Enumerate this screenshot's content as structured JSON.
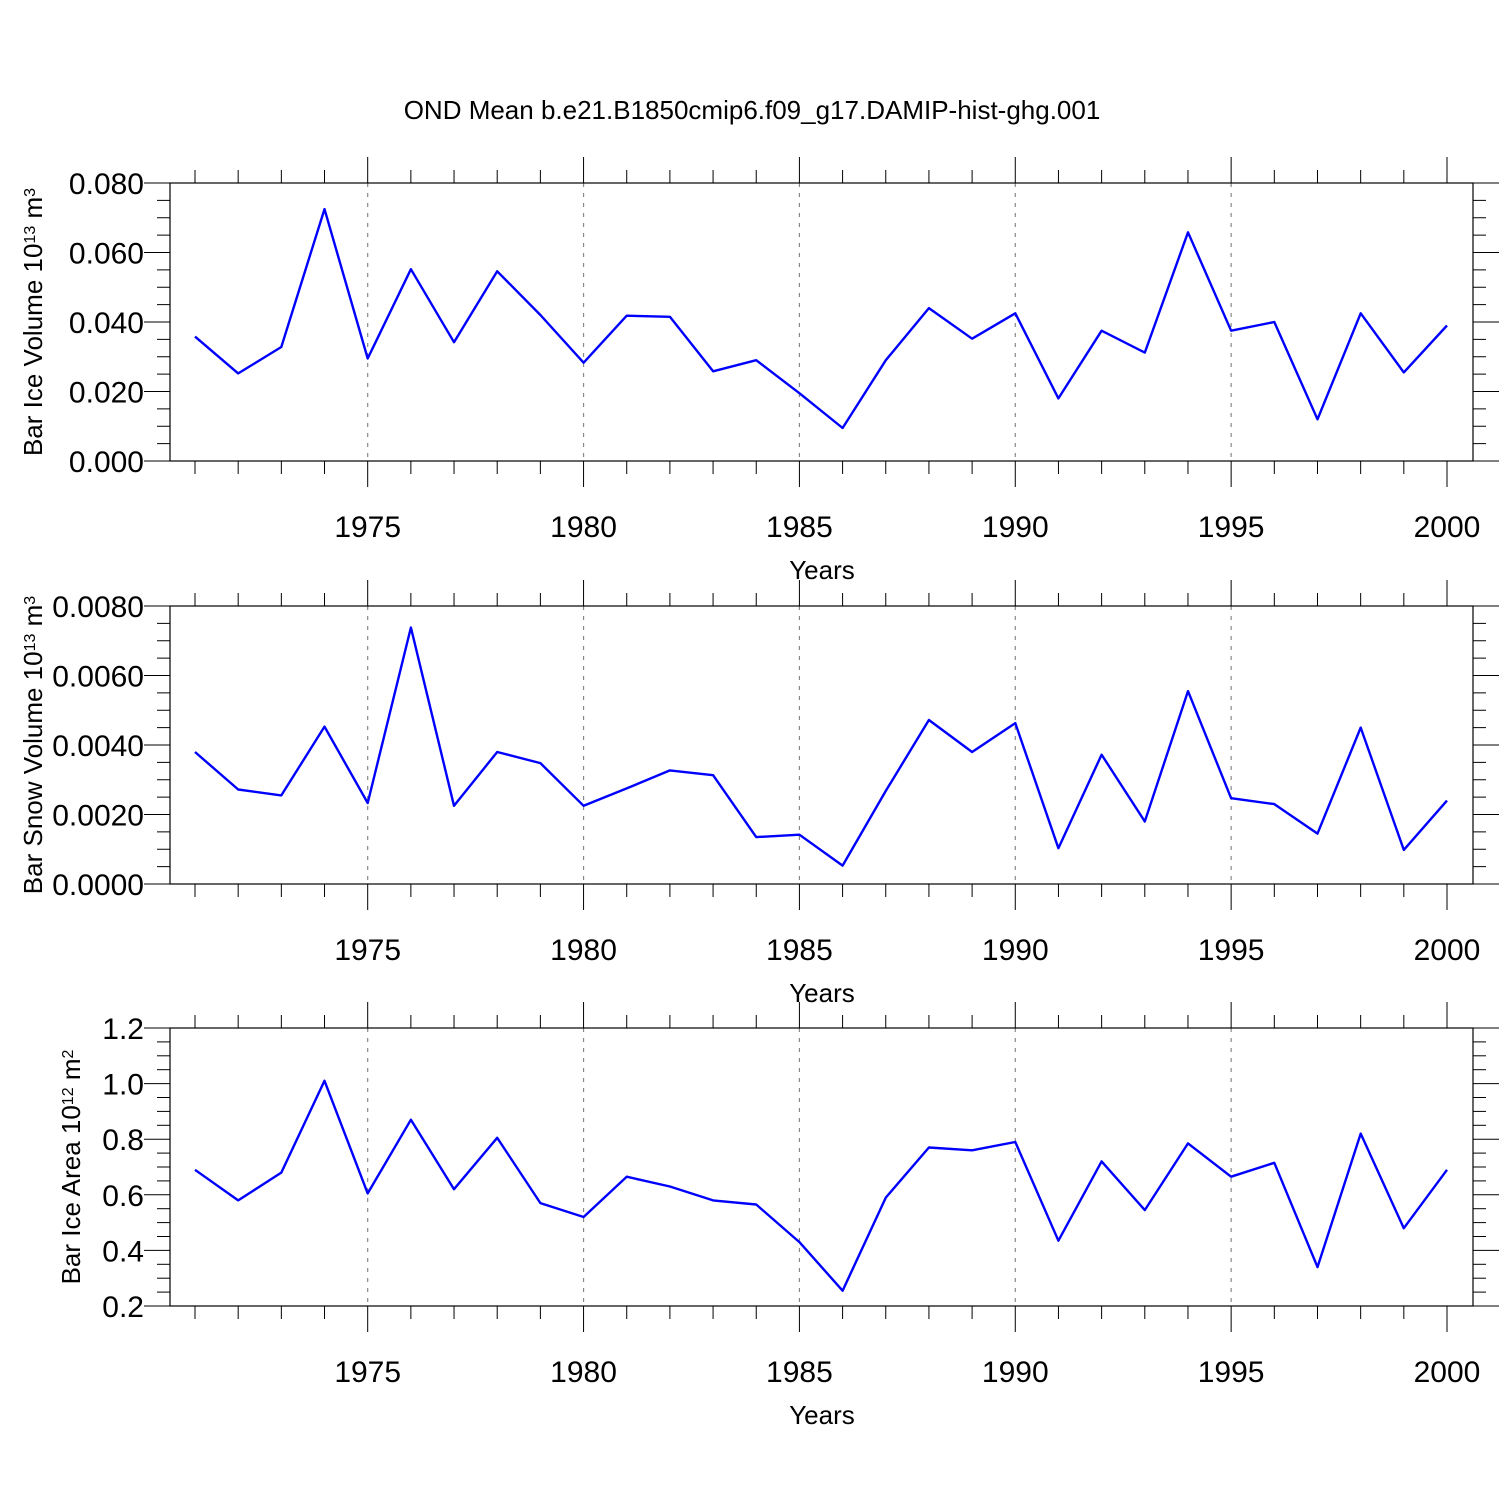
{
  "figure": {
    "title": "OND Mean b.e21.B1850cmip6.f09_g17.DAMIP-hist-ghg.001"
  },
  "chart_data": [
    {
      "type": "line",
      "xlabel": "Years",
      "ylabel": "Bar Ice Volume 10",
      "ylabel_exp": "13",
      "ylabel_unit": "m",
      "ylabel_unit_exp": "3",
      "xlim": [
        1971,
        2000
      ],
      "ylim": [
        0.0,
        0.08
      ],
      "xticks": [
        1975,
        1980,
        1985,
        1990,
        1995,
        2000
      ],
      "xtick_labels": [
        "1975",
        "1980",
        "1985",
        "1990",
        "1995",
        "2000"
      ],
      "yticks": [
        0.0,
        0.02,
        0.04,
        0.06,
        0.08
      ],
      "ytick_labels": [
        "0.000",
        "0.020",
        "0.040",
        "0.060",
        "0.080"
      ],
      "vgrid_years": [
        1975,
        1980,
        1985,
        1990,
        1995
      ],
      "series_color": "#0000ff",
      "x": [
        1971,
        1972,
        1973,
        1974,
        1975,
        1976,
        1977,
        1978,
        1979,
        1980,
        1981,
        1982,
        1983,
        1984,
        1985,
        1986,
        1987,
        1988,
        1989,
        1990,
        1991,
        1992,
        1993,
        1994,
        1995,
        1996,
        1997,
        1998,
        1999,
        2000
      ],
      "values": [
        0.0358,
        0.0252,
        0.0328,
        0.0725,
        0.0295,
        0.0552,
        0.0342,
        0.0546,
        0.042,
        0.0283,
        0.0418,
        0.0415,
        0.0258,
        0.029,
        0.0195,
        0.0095,
        0.029,
        0.044,
        0.0352,
        0.0425,
        0.018,
        0.0375,
        0.0312,
        0.0658,
        0.0375,
        0.04,
        0.012,
        0.0425,
        0.0255,
        0.039
      ]
    },
    {
      "type": "line",
      "xlabel": "Years",
      "ylabel": "Bar Snow Volume 10",
      "ylabel_exp": "13",
      "ylabel_unit": "m",
      "ylabel_unit_exp": "3",
      "xlim": [
        1971,
        2000
      ],
      "ylim": [
        0.0,
        0.008
      ],
      "xticks": [
        1975,
        1980,
        1985,
        1990,
        1995,
        2000
      ],
      "xtick_labels": [
        "1975",
        "1980",
        "1985",
        "1990",
        "1995",
        "2000"
      ],
      "yticks": [
        0.0,
        0.002,
        0.004,
        0.006,
        0.008
      ],
      "ytick_labels": [
        "0.0000",
        "0.0020",
        "0.0040",
        "0.0060",
        "0.0080"
      ],
      "vgrid_years": [
        1975,
        1980,
        1985,
        1990,
        1995
      ],
      "series_color": "#0000ff",
      "x": [
        1971,
        1972,
        1973,
        1974,
        1975,
        1976,
        1977,
        1978,
        1979,
        1980,
        1981,
        1982,
        1983,
        1984,
        1985,
        1986,
        1987,
        1988,
        1989,
        1990,
        1991,
        1992,
        1993,
        1994,
        1995,
        1996,
        1997,
        1998,
        1999,
        2000
      ],
      "values": [
        0.0038,
        0.00272,
        0.00255,
        0.00453,
        0.00233,
        0.00738,
        0.00225,
        0.0038,
        0.00348,
        0.00225,
        0.00275,
        0.00327,
        0.00313,
        0.00135,
        0.00142,
        0.00053,
        0.00268,
        0.00472,
        0.0038,
        0.00463,
        0.00103,
        0.00372,
        0.0018,
        0.00555,
        0.00247,
        0.0023,
        0.00145,
        0.0045,
        0.00098,
        0.0024
      ]
    },
    {
      "type": "line",
      "xlabel": "Years",
      "ylabel": "Bar Ice Area 10",
      "ylabel_exp": "12",
      "ylabel_unit": "m",
      "ylabel_unit_exp": "2",
      "xlim": [
        1971,
        2000
      ],
      "ylim": [
        0.2,
        1.2
      ],
      "xticks": [
        1975,
        1980,
        1985,
        1990,
        1995,
        2000
      ],
      "xtick_labels": [
        "1975",
        "1980",
        "1985",
        "1990",
        "1995",
        "2000"
      ],
      "yticks": [
        0.2,
        0.4,
        0.6,
        0.8,
        1.0,
        1.2
      ],
      "ytick_labels": [
        "0.2",
        "0.4",
        "0.6",
        "0.8",
        "1.0",
        "1.2"
      ],
      "vgrid_years": [
        1975,
        1980,
        1985,
        1990,
        1995
      ],
      "series_color": "#0000ff",
      "x": [
        1971,
        1972,
        1973,
        1974,
        1975,
        1976,
        1977,
        1978,
        1979,
        1980,
        1981,
        1982,
        1983,
        1984,
        1985,
        1986,
        1987,
        1988,
        1989,
        1990,
        1991,
        1992,
        1993,
        1994,
        1995,
        1996,
        1997,
        1998,
        1999,
        2000
      ],
      "values": [
        0.69,
        0.58,
        0.68,
        1.01,
        0.605,
        0.87,
        0.62,
        0.805,
        0.57,
        0.52,
        0.665,
        0.63,
        0.58,
        0.565,
        0.43,
        0.255,
        0.59,
        0.77,
        0.76,
        0.79,
        0.435,
        0.72,
        0.545,
        0.785,
        0.665,
        0.715,
        0.34,
        0.82,
        0.48,
        0.69
      ]
    }
  ]
}
